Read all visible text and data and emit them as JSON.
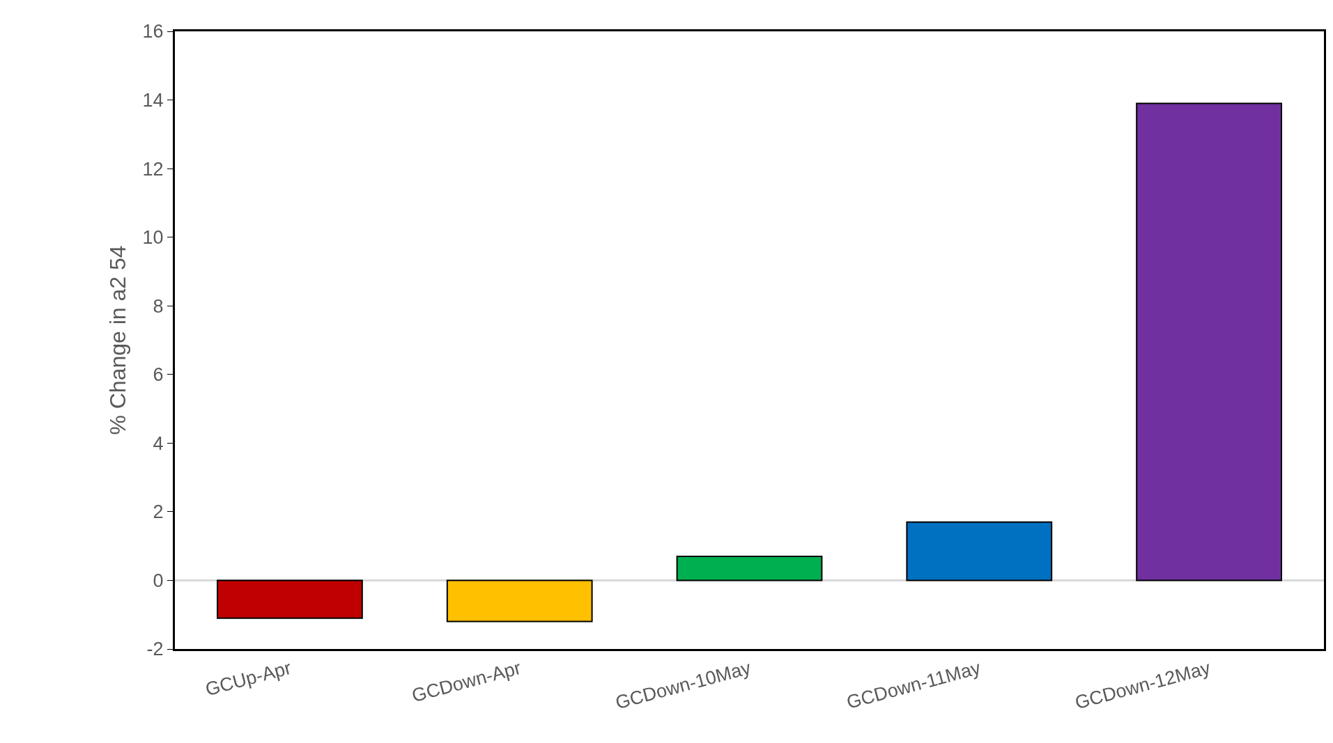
{
  "chart_data": {
    "type": "bar",
    "ylabel": "% Change in a2 54",
    "categories": [
      "GCUp-Apr",
      "GCDown-Apr",
      "GCDown-10May",
      "GCDown-11May",
      "GCDown-12May"
    ],
    "values": [
      -1.1,
      -1.2,
      0.7,
      1.7,
      13.9
    ],
    "colors": [
      "#c00000",
      "#ffc000",
      "#00b050",
      "#0070c0",
      "#7030a0"
    ],
    "ylim": [
      -2,
      16
    ],
    "yticks": [
      -2,
      0,
      2,
      4,
      6,
      8,
      10,
      12,
      14,
      16
    ],
    "ref_lines": [
      {
        "axis": "y",
        "value": 0,
        "color": "#d9d9d9"
      }
    ]
  }
}
